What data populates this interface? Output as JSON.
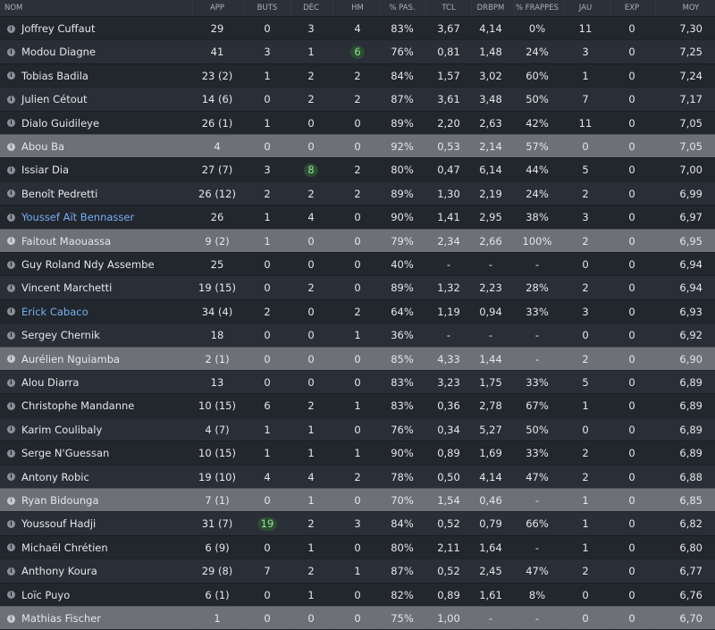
{
  "table": {
    "columns": [
      "NOM",
      "APP",
      "BUTS",
      "DÉC",
      "HM",
      "% PAS.",
      "TCL",
      "DRBPM",
      "% FRAPPES",
      "JAU",
      "EXP",
      "MOY"
    ],
    "rows": [
      [
        "Joffrey Cuffaut",
        "29",
        "0",
        "3",
        "4",
        "83%",
        "3,67",
        "4,14",
        "0%",
        "11",
        "0",
        "7,30"
      ],
      [
        "Modou Diagne",
        "41",
        "3",
        "1",
        "6",
        "76%",
        "0,81",
        "1,48",
        "24%",
        "3",
        "0",
        "7,25"
      ],
      [
        "Tobias Badila",
        "23 (2)",
        "1",
        "2",
        "2",
        "84%",
        "1,57",
        "3,02",
        "60%",
        "1",
        "0",
        "7,24"
      ],
      [
        "Julien Cétout",
        "14 (6)",
        "0",
        "2",
        "2",
        "87%",
        "3,61",
        "3,48",
        "50%",
        "7",
        "0",
        "7,17"
      ],
      [
        "Dialo Guidileye",
        "26 (1)",
        "1",
        "0",
        "0",
        "89%",
        "2,20",
        "2,63",
        "42%",
        "11",
        "0",
        "7,05"
      ],
      [
        "Abou Ba",
        "4",
        "0",
        "0",
        "0",
        "92%",
        "0,53",
        "2,14",
        "57%",
        "0",
        "0",
        "7,05"
      ],
      [
        "Issiar Dia",
        "27 (7)",
        "3",
        "8",
        "2",
        "80%",
        "0,47",
        "6,14",
        "44%",
        "5",
        "0",
        "7,00"
      ],
      [
        "Benoît Pedretti",
        "26 (12)",
        "2",
        "2",
        "2",
        "89%",
        "1,30",
        "2,19",
        "24%",
        "2",
        "0",
        "6,99"
      ],
      [
        "Youssef Aït Bennasser",
        "26",
        "1",
        "4",
        "0",
        "90%",
        "1,41",
        "2,95",
        "38%",
        "3",
        "0",
        "6,97"
      ],
      [
        "Faitout Maouassa",
        "9 (2)",
        "1",
        "0",
        "0",
        "79%",
        "2,34",
        "2,66",
        "100%",
        "2",
        "0",
        "6,95"
      ],
      [
        "Guy Roland Ndy Assembe",
        "25",
        "0",
        "0",
        "0",
        "40%",
        "-",
        "-",
        "-",
        "0",
        "0",
        "6,94"
      ],
      [
        "Vincent Marchetti",
        "19 (15)",
        "0",
        "2",
        "0",
        "89%",
        "1,32",
        "2,23",
        "28%",
        "2",
        "0",
        "6,94"
      ],
      [
        "Erick Cabaco",
        "34 (4)",
        "2",
        "0",
        "2",
        "64%",
        "1,19",
        "0,94",
        "33%",
        "3",
        "0",
        "6,93"
      ],
      [
        "Sergey Chernik",
        "18",
        "0",
        "0",
        "1",
        "36%",
        "-",
        "-",
        "-",
        "0",
        "0",
        "6,92"
      ],
      [
        "Aurélien Nguiamba",
        "2 (1)",
        "0",
        "0",
        "0",
        "85%",
        "4,33",
        "1,44",
        "-",
        "2",
        "0",
        "6,90"
      ],
      [
        "Alou Diarra",
        "13",
        "0",
        "0",
        "0",
        "83%",
        "3,23",
        "1,75",
        "33%",
        "5",
        "0",
        "6,89"
      ],
      [
        "Christophe Mandanne",
        "10 (15)",
        "6",
        "2",
        "1",
        "83%",
        "0,36",
        "2,78",
        "67%",
        "1",
        "0",
        "6,89"
      ],
      [
        "Karim Coulibaly",
        "4 (7)",
        "1",
        "1",
        "0",
        "76%",
        "0,34",
        "5,27",
        "50%",
        "0",
        "0",
        "6,89"
      ],
      [
        "Serge N'Guessan",
        "10 (15)",
        "1",
        "1",
        "1",
        "90%",
        "0,89",
        "1,69",
        "33%",
        "2",
        "0",
        "6,89"
      ],
      [
        "Antony Robic",
        "19 (10)",
        "4",
        "4",
        "2",
        "78%",
        "0,50",
        "4,14",
        "47%",
        "2",
        "0",
        "6,88"
      ],
      [
        "Ryan Bidounga",
        "7 (1)",
        "0",
        "1",
        "0",
        "70%",
        "1,54",
        "0,46",
        "-",
        "1",
        "0",
        "6,85"
      ],
      [
        "Youssouf Hadji",
        "31 (7)",
        "19",
        "2",
        "3",
        "84%",
        "0,52",
        "0,79",
        "66%",
        "1",
        "0",
        "6,82"
      ],
      [
        "Michaël Chrétien",
        "6 (9)",
        "0",
        "1",
        "0",
        "80%",
        "2,11",
        "1,64",
        "-",
        "1",
        "0",
        "6,80"
      ],
      [
        "Anthony Koura",
        "29 (8)",
        "7",
        "2",
        "1",
        "87%",
        "0,52",
        "2,45",
        "47%",
        "2",
        "0",
        "6,77"
      ],
      [
        "Loïc Puyo",
        "6 (1)",
        "0",
        "1",
        "0",
        "82%",
        "0,89",
        "1,61",
        "8%",
        "0",
        "0",
        "6,76"
      ],
      [
        "Mathias Fischer",
        "1",
        "0",
        "0",
        "0",
        "75%",
        "1,00",
        "-",
        "-",
        "0",
        "0",
        "6,70"
      ]
    ]
  }
}
